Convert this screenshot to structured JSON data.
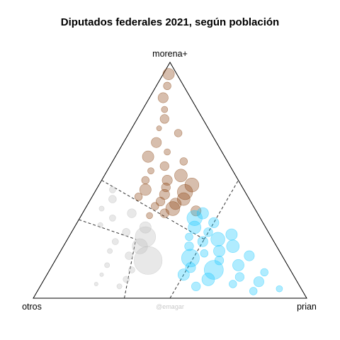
{
  "chart_data": {
    "type": "scatter",
    "subtype": "ternary-bubble",
    "title": "Diputados federales 2021, según población",
    "vertices": {
      "top": "morena+",
      "left": "otros",
      "right": "prian"
    },
    "credit": "@emagar",
    "grid": false,
    "colors": {
      "morena+": "#8b4513",
      "prian": "#1ec8ff",
      "otros": "#bdbdbd",
      "frame": "#000000",
      "guides": "#333333"
    },
    "guide_lines": [
      {
        "from": {
          "morena+": 0.5,
          "otros": 0.5,
          "prian": 0.0
        },
        "to": {
          "morena+": 0.333,
          "otros": 0.333,
          "prian": 0.333
        }
      },
      {
        "from": {
          "morena+": 0.333,
          "otros": 0.667,
          "prian": 0.0
        },
        "to": {
          "morena+": 0.25,
          "otros": 0.5,
          "prian": 0.25
        }
      },
      {
        "from": {
          "morena+": 0.0,
          "otros": 0.667,
          "prian": 0.333
        },
        "to": {
          "morena+": 0.25,
          "otros": 0.5,
          "prian": 0.25
        }
      },
      {
        "from": {
          "morena+": 0.0,
          "otros": 0.5,
          "prian": 0.5
        },
        "to": {
          "morena+": 0.25,
          "otros": 0.25,
          "prian": 0.5
        }
      },
      {
        "from": {
          "morena+": 0.25,
          "otros": 0.25,
          "prian": 0.5
        },
        "to": {
          "morena+": 0.333,
          "otros": 0.333,
          "prian": 0.333
        }
      },
      {
        "from": {
          "morena+": 0.25,
          "otros": 0.25,
          "prian": 0.5
        },
        "to": {
          "morena+": 0.5,
          "otros": 0.0,
          "prian": 0.5
        }
      }
    ],
    "series": [
      {
        "name": "morena+",
        "points": [
          {
            "m": 0.95,
            "o": 0.03,
            "p": 0.02,
            "w": 9
          },
          {
            "m": 0.9,
            "o": 0.06,
            "p": 0.04,
            "w": 6
          },
          {
            "m": 0.85,
            "o": 0.1,
            "p": 0.05,
            "w": 8
          },
          {
            "m": 0.8,
            "o": 0.12,
            "p": 0.08,
            "w": 5
          },
          {
            "m": 0.76,
            "o": 0.14,
            "p": 0.1,
            "w": 7
          },
          {
            "m": 0.72,
            "o": 0.18,
            "p": 0.1,
            "w": 4
          },
          {
            "m": 0.7,
            "o": 0.12,
            "p": 0.18,
            "w": 6
          },
          {
            "m": 0.66,
            "o": 0.22,
            "p": 0.12,
            "w": 8
          },
          {
            "m": 0.62,
            "o": 0.2,
            "p": 0.18,
            "w": 5
          },
          {
            "m": 0.6,
            "o": 0.28,
            "p": 0.12,
            "w": 9
          },
          {
            "m": 0.58,
            "o": 0.16,
            "p": 0.26,
            "w": 6
          },
          {
            "m": 0.56,
            "o": 0.24,
            "p": 0.2,
            "w": 7
          },
          {
            "m": 0.54,
            "o": 0.3,
            "p": 0.16,
            "w": 5
          },
          {
            "m": 0.52,
            "o": 0.2,
            "p": 0.28,
            "w": 10
          },
          {
            "m": 0.5,
            "o": 0.34,
            "p": 0.16,
            "w": 6
          },
          {
            "m": 0.5,
            "o": 0.26,
            "p": 0.24,
            "w": 8
          },
          {
            "m": 0.48,
            "o": 0.18,
            "p": 0.34,
            "w": 11
          },
          {
            "m": 0.47,
            "o": 0.28,
            "p": 0.25,
            "w": 7
          },
          {
            "m": 0.46,
            "o": 0.36,
            "p": 0.18,
            "w": 9
          },
          {
            "m": 0.45,
            "o": 0.22,
            "p": 0.33,
            "w": 12
          },
          {
            "m": 0.44,
            "o": 0.3,
            "p": 0.26,
            "w": 8
          },
          {
            "m": 0.43,
            "o": 0.4,
            "p": 0.17,
            "w": 6
          },
          {
            "m": 0.42,
            "o": 0.24,
            "p": 0.34,
            "w": 10
          },
          {
            "m": 0.41,
            "o": 0.33,
            "p": 0.26,
            "w": 7
          },
          {
            "m": 0.4,
            "o": 0.28,
            "p": 0.32,
            "w": 9
          },
          {
            "m": 0.39,
            "o": 0.36,
            "p": 0.25,
            "w": 6
          },
          {
            "m": 0.38,
            "o": 0.3,
            "p": 0.32,
            "w": 11
          },
          {
            "m": 0.37,
            "o": 0.22,
            "p": 0.41,
            "w": 8
          },
          {
            "m": 0.36,
            "o": 0.34,
            "p": 0.3,
            "w": 7
          },
          {
            "m": 0.35,
            "o": 0.4,
            "p": 0.25,
            "w": 5
          }
        ]
      },
      {
        "name": "prian",
        "points": [
          {
            "m": 0.36,
            "o": 0.2,
            "p": 0.44,
            "w": 9
          },
          {
            "m": 0.34,
            "o": 0.24,
            "p": 0.42,
            "w": 12
          },
          {
            "m": 0.32,
            "o": 0.18,
            "p": 0.5,
            "w": 8
          },
          {
            "m": 0.3,
            "o": 0.26,
            "p": 0.44,
            "w": 10
          },
          {
            "m": 0.28,
            "o": 0.22,
            "p": 0.5,
            "w": 7
          },
          {
            "m": 0.27,
            "o": 0.14,
            "p": 0.59,
            "w": 9
          },
          {
            "m": 0.26,
            "o": 0.3,
            "p": 0.44,
            "w": 6
          },
          {
            "m": 0.25,
            "o": 0.2,
            "p": 0.55,
            "w": 11
          },
          {
            "m": 0.24,
            "o": 0.26,
            "p": 0.5,
            "w": 8
          },
          {
            "m": 0.22,
            "o": 0.16,
            "p": 0.62,
            "w": 10
          },
          {
            "m": 0.22,
            "o": 0.32,
            "p": 0.46,
            "w": 7
          },
          {
            "m": 0.2,
            "o": 0.22,
            "p": 0.58,
            "w": 9
          },
          {
            "m": 0.19,
            "o": 0.28,
            "p": 0.53,
            "w": 6
          },
          {
            "m": 0.18,
            "o": 0.12,
            "p": 0.7,
            "w": 8
          },
          {
            "m": 0.17,
            "o": 0.34,
            "p": 0.49,
            "w": 14
          },
          {
            "m": 0.16,
            "o": 0.24,
            "p": 0.6,
            "w": 7
          },
          {
            "m": 0.14,
            "o": 0.18,
            "p": 0.68,
            "w": 9
          },
          {
            "m": 0.13,
            "o": 0.36,
            "p": 0.51,
            "w": 8
          },
          {
            "m": 0.12,
            "o": 0.28,
            "p": 0.6,
            "w": 15
          },
          {
            "m": 0.11,
            "o": 0.1,
            "p": 0.79,
            "w": 6
          },
          {
            "m": 0.1,
            "o": 0.4,
            "p": 0.5,
            "w": 9
          },
          {
            "m": 0.09,
            "o": 0.2,
            "p": 0.71,
            "w": 7
          },
          {
            "m": 0.08,
            "o": 0.32,
            "p": 0.6,
            "w": 10
          },
          {
            "m": 0.07,
            "o": 0.14,
            "p": 0.79,
            "w": 8
          },
          {
            "m": 0.06,
            "o": 0.24,
            "p": 0.7,
            "w": 6
          },
          {
            "m": 0.05,
            "o": 0.38,
            "p": 0.57,
            "w": 7
          },
          {
            "m": 0.04,
            "o": 0.08,
            "p": 0.88,
            "w": 5
          },
          {
            "m": 0.03,
            "o": 0.18,
            "p": 0.79,
            "w": 6
          }
        ]
      },
      {
        "name": "otros",
        "points": [
          {
            "m": 0.46,
            "o": 0.48,
            "p": 0.06,
            "w": 5
          },
          {
            "m": 0.42,
            "o": 0.5,
            "p": 0.08,
            "w": 6
          },
          {
            "m": 0.38,
            "o": 0.56,
            "p": 0.06,
            "w": 4
          },
          {
            "m": 0.36,
            "o": 0.46,
            "p": 0.18,
            "w": 7
          },
          {
            "m": 0.34,
            "o": 0.54,
            "p": 0.12,
            "w": 5
          },
          {
            "m": 0.31,
            "o": 0.6,
            "p": 0.09,
            "w": 4
          },
          {
            "m": 0.3,
            "o": 0.44,
            "p": 0.26,
            "w": 9
          },
          {
            "m": 0.28,
            "o": 0.52,
            "p": 0.2,
            "w": 6
          },
          {
            "m": 0.26,
            "o": 0.46,
            "p": 0.28,
            "w": 16
          },
          {
            "m": 0.24,
            "o": 0.58,
            "p": 0.18,
            "w": 5
          },
          {
            "m": 0.22,
            "o": 0.5,
            "p": 0.28,
            "w": 12
          },
          {
            "m": 0.2,
            "o": 0.62,
            "p": 0.18,
            "w": 4
          },
          {
            "m": 0.18,
            "o": 0.56,
            "p": 0.26,
            "w": 6
          },
          {
            "m": 0.16,
            "o": 0.5,
            "p": 0.34,
            "w": 22
          },
          {
            "m": 0.14,
            "o": 0.66,
            "p": 0.2,
            "w": 4
          },
          {
            "m": 0.12,
            "o": 0.58,
            "p": 0.3,
            "w": 5
          },
          {
            "m": 0.1,
            "o": 0.7,
            "p": 0.2,
            "w": 3
          },
          {
            "m": 0.08,
            "o": 0.62,
            "p": 0.3,
            "w": 5
          },
          {
            "m": 0.06,
            "o": 0.74,
            "p": 0.2,
            "w": 3
          },
          {
            "m": 0.05,
            "o": 0.66,
            "p": 0.29,
            "w": 4
          }
        ]
      }
    ]
  }
}
